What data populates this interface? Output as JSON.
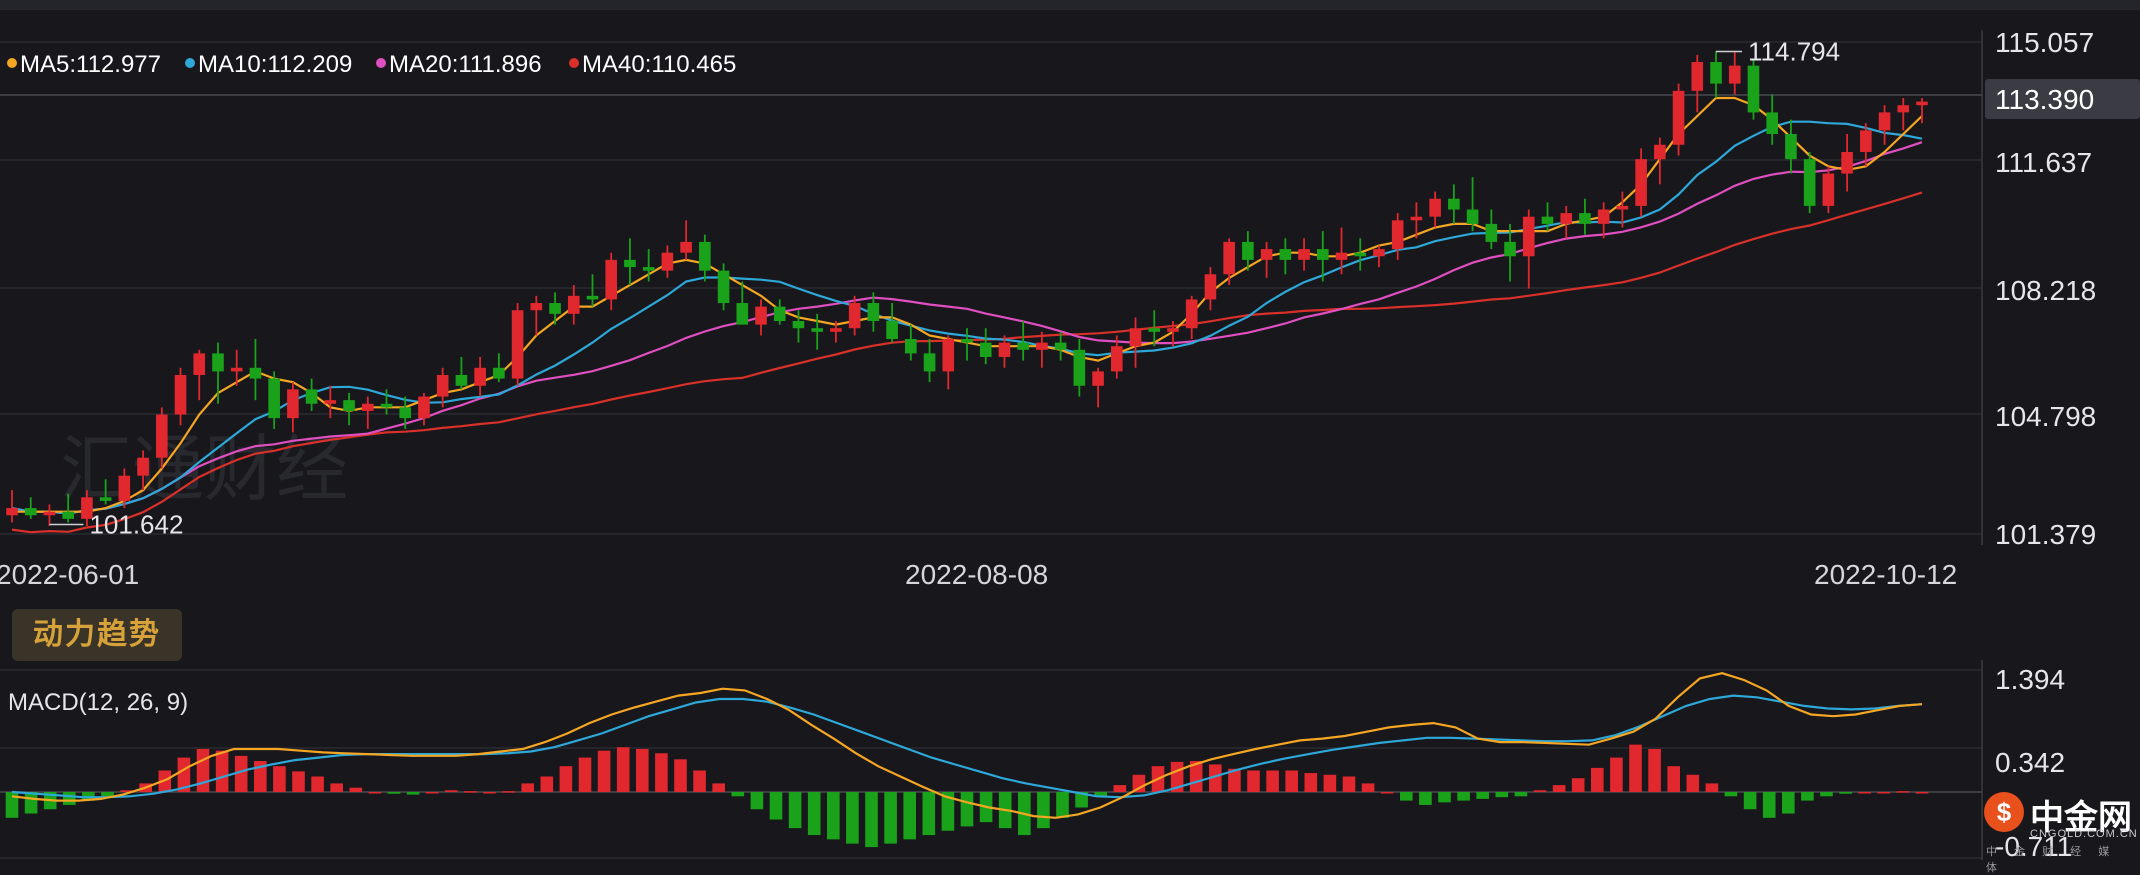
{
  "legend": {
    "ma5": "MA5:112.977",
    "ma10": "MA10:112.209",
    "ma20": "MA20:111.896",
    "ma40": "MA40:110.465"
  },
  "price_axis_labels": [
    "115.057",
    "111.637",
    "108.218",
    "104.798",
    "101.379"
  ],
  "current_price_label": "113.390",
  "annotations": {
    "high": "114.794",
    "low": "101.642"
  },
  "date_labels": [
    "2022-06-01",
    "2022-08-08",
    "2022-10-12"
  ],
  "momentum_button": "动力趋势",
  "macd": {
    "label": "MACD(12, 26, 9)",
    "axis_labels": [
      "1.394",
      "0.342",
      "-0.711"
    ]
  },
  "watermark": "汇通财经",
  "logo": {
    "name": "中金网",
    "url": "CNGOLD.COM.CN",
    "tagline": "中 金 财 经 媒 体"
  },
  "colors": {
    "background": "#17171c",
    "grid": "#2a2a31",
    "up": "#e0282e",
    "down": "#1aa31a",
    "ma5": "#f5a623",
    "ma10": "#2ea8d8",
    "ma20": "#e04fc0",
    "ma40": "#d9302a",
    "dif": "#f5a623",
    "dea": "#2ea8d8"
  },
  "chart_data": [
    {
      "type": "candlestick",
      "title": "",
      "x_start": "2022-06-01",
      "x_end": "2022-10-12",
      "ylim": [
        101.379,
        115.057
      ],
      "grid": true,
      "ohlc": [
        [
          101.9,
          102.6,
          101.7,
          102.1
        ],
        [
          102.1,
          102.4,
          101.8,
          101.9
        ],
        [
          101.9,
          102.2,
          101.6,
          102.0
        ],
        [
          102.0,
          102.5,
          101.7,
          101.8
        ],
        [
          101.8,
          102.6,
          101.6,
          102.4
        ],
        [
          102.4,
          102.9,
          102.2,
          102.3
        ],
        [
          102.3,
          103.2,
          102.1,
          103.0
        ],
        [
          103.0,
          103.7,
          102.6,
          103.5
        ],
        [
          103.5,
          104.9,
          103.2,
          104.7
        ],
        [
          104.7,
          106.0,
          104.4,
          105.8
        ],
        [
          105.8,
          106.5,
          105.1,
          106.4
        ],
        [
          106.4,
          106.7,
          105.0,
          105.9
        ],
        [
          105.9,
          106.5,
          105.5,
          106.0
        ],
        [
          106.0,
          106.8,
          105.1,
          105.7
        ],
        [
          105.7,
          105.9,
          104.3,
          104.6
        ],
        [
          104.6,
          105.6,
          104.2,
          105.4
        ],
        [
          105.4,
          105.7,
          104.8,
          105.0
        ],
        [
          105.0,
          105.5,
          104.6,
          105.1
        ],
        [
          105.1,
          105.3,
          104.4,
          104.8
        ],
        [
          104.8,
          105.2,
          104.3,
          105.0
        ],
        [
          105.0,
          105.4,
          104.7,
          104.9
        ],
        [
          104.9,
          105.2,
          104.3,
          104.6
        ],
        [
          104.6,
          105.3,
          104.4,
          105.2
        ],
        [
          105.2,
          106.0,
          104.9,
          105.8
        ],
        [
          105.8,
          106.3,
          105.4,
          105.5
        ],
        [
          105.5,
          106.3,
          105.2,
          106.0
        ],
        [
          106.0,
          106.4,
          105.6,
          105.7
        ],
        [
          105.7,
          107.8,
          105.5,
          107.6
        ],
        [
          107.6,
          108.0,
          106.9,
          107.8
        ],
        [
          107.8,
          108.1,
          107.2,
          107.5
        ],
        [
          107.5,
          108.3,
          107.2,
          108.0
        ],
        [
          108.0,
          108.6,
          107.7,
          107.9
        ],
        [
          107.9,
          109.2,
          107.6,
          109.0
        ],
        [
          109.0,
          109.6,
          108.3,
          108.8
        ],
        [
          108.8,
          109.3,
          108.4,
          108.7
        ],
        [
          108.7,
          109.4,
          108.5,
          109.2
        ],
        [
          109.2,
          110.1,
          109.0,
          109.5
        ],
        [
          109.5,
          109.7,
          108.4,
          108.7
        ],
        [
          108.7,
          108.9,
          107.6,
          107.8
        ],
        [
          107.8,
          108.4,
          107.2,
          107.2
        ],
        [
          107.2,
          107.9,
          106.9,
          107.7
        ],
        [
          107.7,
          107.9,
          107.2,
          107.3
        ],
        [
          107.3,
          107.6,
          106.7,
          107.1
        ],
        [
          107.1,
          107.5,
          106.5,
          107.0
        ],
        [
          107.0,
          107.3,
          106.7,
          107.1
        ],
        [
          107.1,
          108.0,
          106.9,
          107.8
        ],
        [
          107.8,
          108.1,
          107.0,
          107.3
        ],
        [
          107.3,
          107.8,
          106.7,
          106.8
        ],
        [
          106.8,
          107.2,
          106.2,
          106.4
        ],
        [
          106.4,
          106.8,
          105.6,
          105.9
        ],
        [
          105.9,
          106.9,
          105.4,
          106.8
        ],
        [
          106.8,
          107.1,
          106.2,
          106.7
        ],
        [
          106.7,
          107.1,
          106.1,
          106.3
        ],
        [
          106.3,
          106.9,
          106.0,
          106.7
        ],
        [
          106.7,
          107.3,
          106.2,
          106.5
        ],
        [
          106.5,
          107.0,
          106.0,
          106.7
        ],
        [
          106.7,
          107.0,
          106.2,
          106.5
        ],
        [
          106.5,
          106.8,
          105.2,
          105.5
        ],
        [
          105.5,
          106.0,
          104.9,
          105.9
        ],
        [
          105.9,
          106.9,
          105.7,
          106.6
        ],
        [
          106.6,
          107.4,
          106.0,
          107.1
        ],
        [
          107.1,
          107.6,
          106.6,
          107.0
        ],
        [
          107.0,
          107.3,
          106.6,
          107.1
        ],
        [
          107.1,
          108.0,
          106.8,
          107.9
        ],
        [
          107.9,
          108.8,
          107.6,
          108.6
        ],
        [
          108.6,
          109.6,
          108.3,
          109.5
        ],
        [
          109.5,
          109.8,
          108.7,
          109.0
        ],
        [
          109.0,
          109.5,
          108.5,
          109.3
        ],
        [
          109.3,
          109.6,
          108.6,
          109.0
        ],
        [
          109.0,
          109.6,
          108.7,
          109.3
        ],
        [
          109.3,
          109.8,
          108.4,
          109.0
        ],
        [
          109.0,
          109.9,
          108.6,
          109.2
        ],
        [
          109.2,
          109.6,
          108.7,
          109.1
        ],
        [
          109.1,
          109.4,
          108.8,
          109.3
        ],
        [
          109.3,
          110.3,
          109.0,
          110.1
        ],
        [
          110.1,
          110.6,
          109.6,
          110.2
        ],
        [
          110.2,
          110.9,
          109.9,
          110.7
        ],
        [
          110.7,
          111.1,
          110.0,
          110.4
        ],
        [
          110.4,
          111.3,
          109.8,
          110.0
        ],
        [
          110.0,
          110.4,
          109.3,
          109.5
        ],
        [
          109.5,
          110.0,
          108.4,
          109.1
        ],
        [
          109.1,
          110.4,
          108.2,
          110.2
        ],
        [
          110.2,
          110.6,
          109.8,
          110.0
        ],
        [
          110.0,
          110.5,
          109.6,
          110.3
        ],
        [
          110.3,
          110.7,
          109.7,
          110.0
        ],
        [
          110.0,
          110.6,
          109.6,
          110.4
        ],
        [
          110.4,
          110.9,
          109.9,
          110.5
        ],
        [
          110.5,
          112.1,
          110.2,
          111.8
        ],
        [
          111.8,
          112.4,
          111.1,
          112.2
        ],
        [
          112.2,
          113.9,
          111.9,
          113.7
        ],
        [
          113.7,
          114.7,
          113.1,
          114.5
        ],
        [
          114.5,
          114.8,
          113.5,
          113.9
        ],
        [
          113.9,
          114.8,
          113.6,
          114.4
        ],
        [
          114.4,
          114.6,
          112.9,
          113.1
        ],
        [
          113.1,
          113.6,
          112.2,
          112.5
        ],
        [
          112.5,
          112.9,
          111.4,
          111.8
        ],
        [
          111.8,
          112.0,
          110.3,
          110.5
        ],
        [
          110.5,
          111.6,
          110.3,
          111.4
        ],
        [
          111.4,
          112.5,
          110.9,
          112.0
        ],
        [
          112.0,
          112.8,
          111.6,
          112.6
        ],
        [
          112.6,
          113.3,
          112.2,
          113.1
        ],
        [
          113.1,
          113.5,
          112.6,
          113.3
        ],
        [
          113.3,
          113.5,
          112.8,
          113.4
        ]
      ],
      "ma": {
        "MA5": [
          102.0,
          102.0,
          102.0,
          102.0,
          102.0,
          102.1,
          102.3,
          102.6,
          103.2,
          103.9,
          104.7,
          105.3,
          105.6,
          105.9,
          105.7,
          105.6,
          105.3,
          104.9,
          104.8,
          104.9,
          104.9,
          104.9,
          105.1,
          105.3,
          105.4,
          105.6,
          105.8,
          106.3,
          106.9,
          107.3,
          107.7,
          107.7,
          108.0,
          108.3,
          108.6,
          108.9,
          109.0,
          108.9,
          108.6,
          108.3,
          108.0,
          107.6,
          107.4,
          107.3,
          107.2,
          107.3,
          107.4,
          107.4,
          107.2,
          106.9,
          106.8,
          106.7,
          106.6,
          106.6,
          106.6,
          106.6,
          106.5,
          106.3,
          106.2,
          106.4,
          106.6,
          106.7,
          107.0,
          107.5,
          108.1,
          108.5,
          108.8,
          109.1,
          109.2,
          109.2,
          109.1,
          109.1,
          109.2,
          109.4,
          109.5,
          109.7,
          109.9,
          110.0,
          110.0,
          109.8,
          109.8,
          109.8,
          109.8,
          110.0,
          110.1,
          110.2,
          110.6,
          111.1,
          111.8,
          112.5,
          113.0,
          113.5,
          113.5,
          113.3,
          112.9,
          112.4,
          111.9,
          111.6,
          111.5,
          111.6,
          112.0,
          112.5,
          113.0
        ]
      },
      "current_price": 113.39,
      "high_annotation": 114.794,
      "low_annotation": 101.642
    },
    {
      "type": "bar",
      "title": "MACD(12, 26, 9)",
      "ylim": [
        -0.711,
        1.394
      ],
      "histogram": [
        -0.3,
        -0.25,
        -0.2,
        -0.15,
        -0.1,
        -0.05,
        0.02,
        0.1,
        0.25,
        0.4,
        0.5,
        0.48,
        0.42,
        0.36,
        0.3,
        0.24,
        0.18,
        0.1,
        0.05,
        0.0,
        -0.02,
        -0.03,
        0.0,
        0.02,
        0.01,
        0.0,
        0.01,
        0.1,
        0.18,
        0.3,
        0.4,
        0.48,
        0.52,
        0.5,
        0.45,
        0.38,
        0.25,
        0.1,
        -0.05,
        -0.2,
        -0.32,
        -0.42,
        -0.5,
        -0.55,
        -0.6,
        -0.64,
        -0.6,
        -0.55,
        -0.5,
        -0.45,
        -0.4,
        -0.35,
        -0.42,
        -0.5,
        -0.42,
        -0.3,
        -0.18,
        -0.05,
        0.08,
        0.2,
        0.3,
        0.35,
        0.36,
        0.32,
        0.27,
        0.25,
        0.25,
        0.25,
        0.22,
        0.2,
        0.18,
        0.1,
        0.0,
        -0.1,
        -0.15,
        -0.12,
        -0.1,
        -0.08,
        -0.06,
        -0.05,
        0.02,
        0.08,
        0.16,
        0.28,
        0.4,
        0.55,
        0.5,
        0.3,
        0.2,
        0.1,
        -0.05,
        -0.2,
        -0.3,
        -0.25,
        -0.1,
        -0.05,
        -0.02,
        0.0,
        0.0,
        0.01,
        0.0
      ],
      "dif": [
        -0.05,
        -0.08,
        -0.1,
        -0.1,
        -0.08,
        -0.03,
        0.05,
        0.15,
        0.3,
        0.42,
        0.5,
        0.5,
        0.5,
        0.48,
        0.46,
        0.45,
        0.44,
        0.43,
        0.42,
        0.42,
        0.42,
        0.44,
        0.47,
        0.5,
        0.58,
        0.68,
        0.8,
        0.9,
        0.98,
        1.05,
        1.12,
        1.15,
        1.2,
        1.18,
        1.08,
        0.95,
        0.78,
        0.62,
        0.45,
        0.3,
        0.18,
        0.06,
        -0.05,
        -0.12,
        -0.18,
        -0.22,
        -0.28,
        -0.3,
        -0.26,
        -0.18,
        -0.06,
        0.08,
        0.2,
        0.3,
        0.38,
        0.44,
        0.5,
        0.55,
        0.6,
        0.62,
        0.65,
        0.7,
        0.75,
        0.78,
        0.8,
        0.75,
        0.62,
        0.58,
        0.58,
        0.57,
        0.56,
        0.55,
        0.62,
        0.7,
        0.85,
        1.1,
        1.32,
        1.38,
        1.3,
        1.18,
        1.0,
        0.9,
        0.88,
        0.9,
        0.95,
        1.0,
        1.02
      ],
      "dea": [
        0.0,
        -0.02,
        -0.04,
        -0.06,
        -0.06,
        -0.05,
        -0.02,
        0.03,
        0.1,
        0.18,
        0.26,
        0.32,
        0.37,
        0.4,
        0.43,
        0.44,
        0.44,
        0.44,
        0.44,
        0.44,
        0.44,
        0.45,
        0.47,
        0.52,
        0.6,
        0.68,
        0.78,
        0.88,
        0.96,
        1.04,
        1.08,
        1.08,
        1.05,
        0.98,
        0.9,
        0.8,
        0.7,
        0.6,
        0.5,
        0.4,
        0.32,
        0.24,
        0.16,
        0.1,
        0.05,
        0.0,
        -0.05,
        -0.06,
        -0.04,
        0.02,
        0.1,
        0.18,
        0.26,
        0.33,
        0.39,
        0.44,
        0.49,
        0.53,
        0.57,
        0.6,
        0.63,
        0.63,
        0.62,
        0.61,
        0.6,
        0.59,
        0.59,
        0.6,
        0.66,
        0.76,
        0.88,
        1.0,
        1.08,
        1.12,
        1.1,
        1.05,
        1.0,
        0.97,
        0.96,
        0.97,
        1.0,
        1.02
      ]
    }
  ]
}
